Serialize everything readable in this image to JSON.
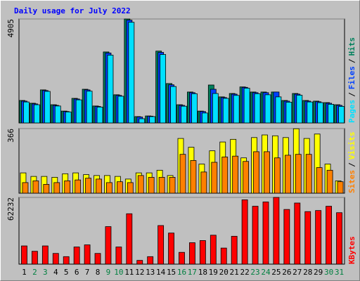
{
  "title": "Daily usage for July 2022",
  "legend_separator": "/",
  "chart_data": [
    {
      "type": "bar",
      "series": [
        {
          "name": "Hits",
          "color": "#00805c",
          "values": [
            1060,
            930,
            1560,
            860,
            560,
            1160,
            1590,
            800,
            3350,
            1330,
            4905,
            300,
            330,
            3390,
            1860,
            860,
            1460,
            560,
            1790,
            1230,
            1390,
            1700,
            1460,
            1460,
            1460,
            1060,
            1390,
            1060,
            1030,
            960,
            860
          ]
        },
        {
          "name": "Files",
          "color": "#0040ff",
          "values": [
            1030,
            900,
            1530,
            830,
            540,
            1130,
            1560,
            780,
            3300,
            1300,
            4850,
            280,
            320,
            3330,
            1800,
            830,
            1430,
            540,
            1590,
            1200,
            1360,
            1680,
            1430,
            1430,
            1460,
            1030,
            1360,
            1030,
            1000,
            930,
            830
          ]
        },
        {
          "name": "Pages",
          "color": "#00e0ff",
          "values": [
            990,
            860,
            1490,
            800,
            520,
            1090,
            1500,
            750,
            3200,
            1260,
            4750,
            200,
            300,
            3230,
            1720,
            790,
            1380,
            470,
            1390,
            1160,
            1300,
            1640,
            1380,
            1330,
            1230,
            980,
            1310,
            990,
            960,
            880,
            780
          ]
        }
      ],
      "ylim": [
        0,
        4905
      ],
      "yticks": [
        4905
      ]
    },
    {
      "type": "bar",
      "series": [
        {
          "name": "Visits",
          "color": "#ffff00",
          "values": [
            115,
            95,
            95,
            90,
            110,
            115,
            105,
            100,
            100,
            95,
            80,
            115,
            115,
            130,
            100,
            310,
            260,
            165,
            240,
            290,
            305,
            200,
            315,
            330,
            325,
            315,
            365,
            310,
            335,
            165,
            70
          ]
        },
        {
          "name": "Sites",
          "color": "#ff8000",
          "values": [
            60,
            70,
            50,
            60,
            70,
            75,
            85,
            80,
            60,
            65,
            60,
            100,
            90,
            90,
            90,
            220,
            185,
            120,
            175,
            205,
            210,
            180,
            235,
            235,
            200,
            215,
            220,
            220,
            145,
            130,
            65
          ]
        }
      ],
      "ylim": [
        0,
        366
      ],
      "yticks": [
        366
      ]
    },
    {
      "type": "bar",
      "categories": [
        "1",
        "2",
        "3",
        "4",
        "5",
        "6",
        "7",
        "8",
        "9",
        "10",
        "11",
        "12",
        "13",
        "14",
        "15",
        "16",
        "17",
        "18",
        "19",
        "20",
        "21",
        "22",
        "23",
        "24",
        "25",
        "26",
        "27",
        "28",
        "29",
        "30",
        "31"
      ],
      "category_colors": [
        "#000000",
        "#008040",
        "#008040",
        "#000000",
        "#000000",
        "#000000",
        "#000000",
        "#000000",
        "#008040",
        "#008040",
        "#000000",
        "#000000",
        "#000000",
        "#000000",
        "#000000",
        "#008040",
        "#008040",
        "#000000",
        "#000000",
        "#000000",
        "#000000",
        "#000000",
        "#008040",
        "#008040",
        "#000000",
        "#000000",
        "#000000",
        "#000000",
        "#000000",
        "#008040",
        "#008040"
      ],
      "series": [
        {
          "name": "KBytes",
          "color": "#ff0000",
          "values": [
            17000,
            12000,
            17000,
            10000,
            7000,
            16000,
            18000,
            10000,
            35000,
            16000,
            47000,
            3500,
            7000,
            36000,
            29000,
            11000,
            20000,
            22000,
            27000,
            15000,
            26000,
            60000,
            54000,
            58000,
            62232,
            51000,
            57000,
            49000,
            50000,
            54000,
            48000
          ]
        }
      ],
      "ylim": [
        0,
        62232
      ],
      "yticks": [
        62232
      ]
    }
  ]
}
